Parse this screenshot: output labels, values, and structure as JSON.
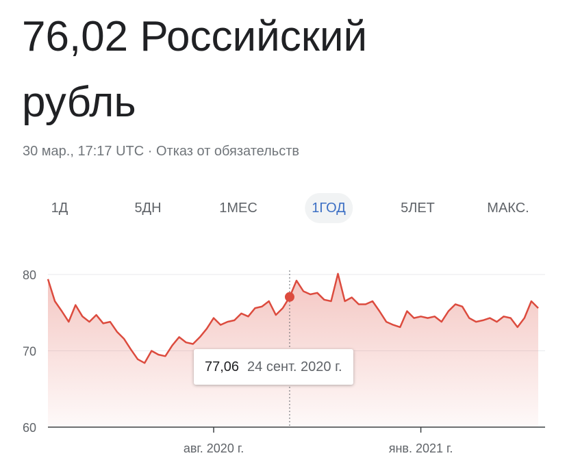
{
  "header": {
    "title": "76,02 Российский рубль",
    "timestamp": "30 мар., 17:17 UTC",
    "separator": "·",
    "disclaimer": "Отказ от обязательств"
  },
  "tabs": {
    "items": [
      "1Д",
      "5ДН",
      "1МЕС",
      "1ГОД",
      "5ЛЕТ",
      "МАКС."
    ],
    "selected": "1ГОД"
  },
  "chart_data": {
    "type": "line",
    "color": "#dc4b3e",
    "grid": true,
    "ylim": [
      60,
      80
    ],
    "yticks": [
      60,
      70,
      80
    ],
    "categories": [
      null,
      null,
      null,
      null,
      null,
      null,
      null,
      null,
      null,
      null,
      null,
      null,
      null,
      null,
      null,
      null,
      null,
      null,
      null,
      null,
      null,
      null,
      null,
      null,
      "авг. 2020 г.",
      null,
      null,
      null,
      null,
      null,
      null,
      null,
      null,
      null,
      null,
      null,
      null,
      null,
      null,
      null,
      null,
      null,
      null,
      null,
      null,
      null,
      null,
      null,
      null,
      null,
      null,
      null,
      null,
      null,
      "янв. 2021 г.",
      null,
      null,
      null,
      null,
      null,
      null,
      null,
      null,
      null,
      null,
      null,
      null,
      null,
      null,
      null,
      null,
      null
    ],
    "values": [
      79.4,
      76.5,
      75.2,
      73.8,
      76,
      74.5,
      73.8,
      74.7,
      73.6,
      73.8,
      72.5,
      71.6,
      70.2,
      68.9,
      68.4,
      70,
      69.5,
      69.3,
      70.7,
      71.8,
      71.1,
      70.9,
      71.8,
      72.9,
      74.3,
      73.4,
      73.8,
      74,
      74.9,
      74.5,
      75.6,
      75.8,
      76.5,
      74.7,
      75.6,
      77.06,
      79.2,
      77.8,
      77.4,
      77.6,
      76.7,
      76.5,
      80.1,
      76.5,
      77,
      76.1,
      76.1,
      76.5,
      75.2,
      73.8,
      73.4,
      73.1,
      75.2,
      74.3,
      74.5,
      74.3,
      74.5,
      73.8,
      75.2,
      76.1,
      75.8,
      74.3,
      73.8,
      74,
      74.3,
      73.8,
      74.5,
      74.3,
      73.1,
      74.3,
      76.5,
      75.6
    ],
    "value_labels": [
      null,
      null,
      null,
      null,
      null,
      null,
      null,
      null,
      null,
      null,
      null,
      null,
      null,
      null,
      null,
      null,
      null,
      null,
      null,
      null,
      null,
      null,
      null,
      null,
      null,
      null,
      null,
      null,
      null,
      null,
      null,
      null,
      null,
      null,
      null,
      "77,06",
      null,
      null,
      null,
      null,
      null,
      null,
      null,
      null,
      null,
      null,
      null,
      null,
      null,
      null,
      null,
      null,
      null,
      null,
      null,
      null,
      null,
      null,
      null,
      null,
      null,
      null,
      null,
      null,
      null,
      null,
      null,
      null,
      null,
      null,
      null,
      null
    ],
    "tooltip_date": "24 сент. 2020 г."
  }
}
